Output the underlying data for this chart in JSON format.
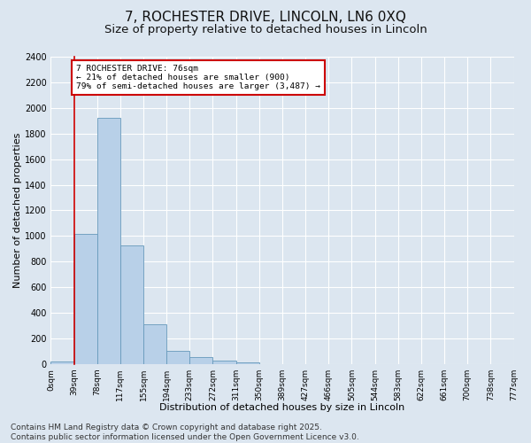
{
  "title_line1": "7, ROCHESTER DRIVE, LINCOLN, LN6 0XQ",
  "title_line2": "Size of property relative to detached houses in Lincoln",
  "xlabel": "Distribution of detached houses by size in Lincoln",
  "ylabel": "Number of detached properties",
  "bar_values": [
    20,
    1020,
    1920,
    930,
    310,
    105,
    55,
    30,
    15,
    0,
    0,
    0,
    0,
    0,
    0,
    0,
    0,
    0,
    0,
    0
  ],
  "bin_labels": [
    "0sqm",
    "39sqm",
    "78sqm",
    "117sqm",
    "155sqm",
    "194sqm",
    "233sqm",
    "272sqm",
    "311sqm",
    "350sqm",
    "389sqm",
    "427sqm",
    "466sqm",
    "505sqm",
    "544sqm",
    "583sqm",
    "622sqm",
    "661sqm",
    "700sqm",
    "738sqm",
    "777sqm"
  ],
  "bar_color": "#b8d0e8",
  "bar_edge_color": "#6699bb",
  "bg_color": "#dce6f0",
  "plot_bg_color": "#dce6f0",
  "grid_color": "#ffffff",
  "annotation_text": "7 ROCHESTER DRIVE: 76sqm\n← 21% of detached houses are smaller (900)\n79% of semi-detached houses are larger (3,487) →",
  "annotation_box_color": "#ffffff",
  "annotation_box_edge": "#cc0000",
  "red_line_x": 1.0,
  "ylim": [
    0,
    2400
  ],
  "yticks": [
    0,
    200,
    400,
    600,
    800,
    1000,
    1200,
    1400,
    1600,
    1800,
    2000,
    2200,
    2400
  ],
  "footer_text": "Contains HM Land Registry data © Crown copyright and database right 2025.\nContains public sector information licensed under the Open Government Licence v3.0.",
  "title_fontsize": 11,
  "subtitle_fontsize": 9.5,
  "label_fontsize": 8,
  "tick_fontsize": 7,
  "footer_fontsize": 6.5
}
